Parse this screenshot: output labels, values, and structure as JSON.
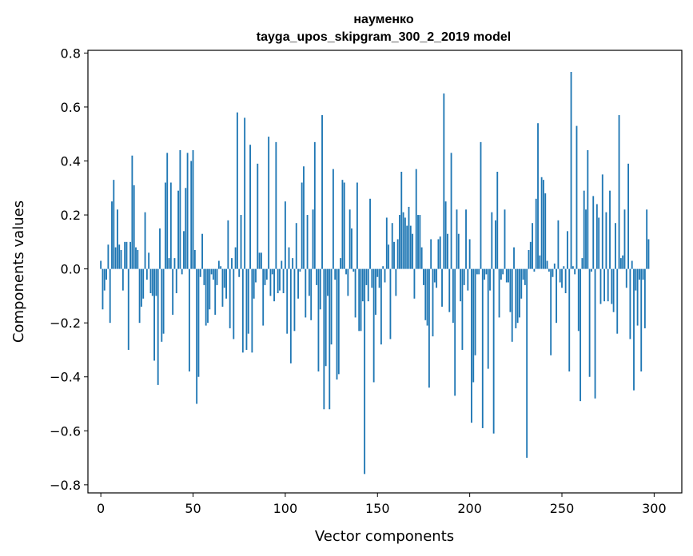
{
  "chart_data": {
    "type": "bar",
    "title": "науменко",
    "subtitle": "tayga_upos_skipgram_300_2_2019 model",
    "xlabel": "Vector components",
    "ylabel": "Components values",
    "xlim": [
      -7,
      315
    ],
    "ylim": [
      -0.83,
      0.81
    ],
    "xticks": [
      0,
      50,
      100,
      150,
      200,
      250,
      300
    ],
    "xtick_labels": [
      "0",
      "50",
      "100",
      "150",
      "200",
      "250",
      "300"
    ],
    "yticks": [
      -0.8,
      -0.6,
      -0.4,
      -0.2,
      0.0,
      0.2,
      0.4,
      0.6,
      0.8
    ],
    "ytick_labels": [
      "−0.8",
      "−0.6",
      "−0.4",
      "−0.2",
      "0.0",
      "0.2",
      "0.4",
      "0.6",
      "0.8"
    ],
    "grid": false,
    "bar_color": "#1f77b4",
    "values": [
      0.03,
      -0.15,
      -0.08,
      -0.04,
      0.09,
      -0.2,
      0.25,
      0.33,
      0.08,
      0.22,
      0.09,
      0.07,
      -0.08,
      0.1,
      0.1,
      -0.3,
      0.1,
      0.42,
      0.31,
      0.08,
      0.07,
      -0.2,
      -0.14,
      -0.11,
      0.21,
      -0.04,
      0.06,
      -0.09,
      -0.1,
      -0.34,
      -0.1,
      -0.43,
      0.15,
      -0.27,
      -0.24,
      0.32,
      0.43,
      0.04,
      0.32,
      -0.17,
      0.04,
      -0.09,
      0.29,
      0.44,
      -0.02,
      0.14,
      0.3,
      0.43,
      -0.38,
      0.4,
      0.44,
      0.07,
      -0.5,
      -0.4,
      -0.03,
      0.13,
      -0.06,
      -0.21,
      -0.2,
      -0.15,
      -0.02,
      -0.04,
      -0.17,
      -0.06,
      0.03,
      0.01,
      -0.14,
      -0.07,
      -0.11,
      0.18,
      -0.22,
      0.04,
      -0.26,
      0.08,
      0.58,
      -0.03,
      0.2,
      -0.31,
      0.56,
      -0.3,
      -0.24,
      0.46,
      -0.31,
      -0.11,
      -0.05,
      0.39,
      0.06,
      0.06,
      -0.21,
      -0.06,
      -0.04,
      0.49,
      -0.1,
      -0.02,
      -0.12,
      0.47,
      -0.09,
      -0.08,
      0.03,
      -0.09,
      0.25,
      -0.24,
      0.08,
      -0.35,
      0.04,
      -0.23,
      0.17,
      -0.11,
      -0.01,
      0.32,
      0.38,
      -0.18,
      0.2,
      -0.1,
      -0.19,
      0.22,
      0.47,
      -0.06,
      -0.38,
      -0.15,
      0.57,
      -0.52,
      -0.36,
      -0.1,
      -0.52,
      -0.28,
      0.37,
      -0.04,
      -0.41,
      -0.39,
      0.04,
      0.33,
      0.32,
      -0.02,
      -0.1,
      0.22,
      0.15,
      -0.01,
      -0.18,
      0.32,
      -0.23,
      -0.23,
      -0.12,
      -0.76,
      -0.06,
      -0.12,
      0.26,
      -0.07,
      -0.42,
      -0.17,
      -0.03,
      -0.07,
      -0.28,
      0.01,
      -0.05,
      0.19,
      0.09,
      -0.26,
      0.17,
      0.1,
      -0.1,
      0.11,
      0.2,
      0.36,
      0.21,
      0.19,
      0.16,
      0.23,
      0.16,
      0.13,
      -0.11,
      0.37,
      0.2,
      0.2,
      0.08,
      -0.06,
      -0.19,
      -0.21,
      -0.44,
      0.11,
      -0.25,
      -0.05,
      -0.07,
      0.11,
      0.12,
      -0.14,
      0.65,
      0.25,
      0.13,
      -0.16,
      0.43,
      -0.2,
      -0.47,
      0.22,
      0.13,
      -0.12,
      -0.3,
      -0.06,
      0.22,
      -0.08,
      0.11,
      -0.57,
      -0.42,
      -0.32,
      -0.02,
      -0.02,
      0.47,
      -0.59,
      -0.04,
      -0.02,
      -0.37,
      -0.08,
      0.21,
      -0.61,
      0.18,
      0.36,
      -0.18,
      -0.04,
      -0.02,
      0.22,
      -0.05,
      -0.05,
      -0.16,
      -0.27,
      0.08,
      -0.22,
      -0.2,
      -0.18,
      -0.11,
      -0.04,
      -0.06,
      -0.7,
      0.07,
      0.1,
      0.17,
      -0.01,
      0.26,
      0.54,
      0.05,
      0.34,
      0.33,
      0.28,
      0.03,
      -0.01,
      -0.32,
      -0.03,
      0.02,
      -0.2,
      0.18,
      -0.05,
      -0.07,
      0.01,
      -0.09,
      0.14,
      -0.38,
      0.73,
      0.01,
      -0.02,
      0.53,
      -0.23,
      -0.49,
      0.04,
      0.29,
      0.22,
      0.44,
      -0.4,
      -0.01,
      0.27,
      -0.48,
      0.24,
      0.19,
      -0.13,
      0.35,
      -0.12,
      0.21,
      -0.12,
      0.29,
      -0.13,
      -0.16,
      0.17,
      -0.24,
      0.57,
      0.04,
      0.05,
      0.22,
      -0.07,
      0.39,
      -0.26,
      0.03,
      -0.45,
      -0.08,
      -0.21,
      -0.04,
      -0.38,
      -0.04,
      -0.22,
      0.22,
      0.11
    ]
  }
}
